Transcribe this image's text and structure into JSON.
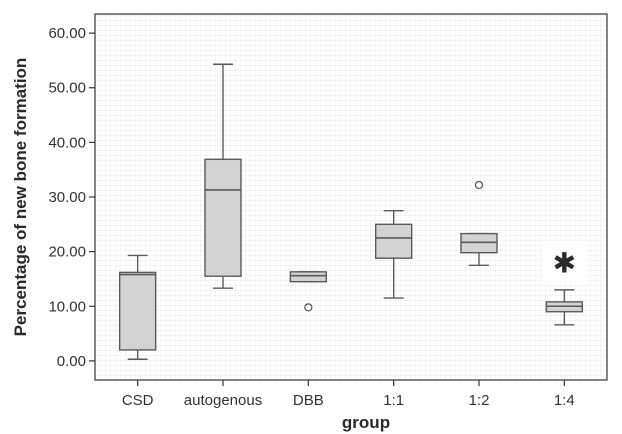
{
  "chart_data": {
    "type": "box",
    "xlabel": "group",
    "ylabel": "Percentage of new bone formation",
    "ylim": [
      -3.5,
      63.5
    ],
    "yticks": [
      0,
      10,
      20,
      30,
      40,
      50,
      60
    ],
    "ytick_labels": [
      "0.00",
      "10.00",
      "20.00",
      "30.00",
      "40.00",
      "50.00",
      "60.00"
    ],
    "grid": true,
    "categories": [
      "CSD",
      "autogenous",
      "DBB",
      "1:1",
      "1:2",
      "1:4"
    ],
    "boxes": [
      {
        "category": "CSD",
        "whisker_low": 0.3,
        "q1": 2.0,
        "median": 15.8,
        "q3": 16.2,
        "whisker_high": 19.3,
        "outliers": []
      },
      {
        "category": "autogenous",
        "whisker_low": 13.3,
        "q1": 15.5,
        "median": 31.3,
        "q3": 36.9,
        "whisker_high": 54.3,
        "outliers": []
      },
      {
        "category": "DBB",
        "whisker_low": 14.5,
        "q1": 14.5,
        "median": 15.6,
        "q3": 16.3,
        "whisker_high": 16.3,
        "outliers": [
          9.8
        ]
      },
      {
        "category": "1:1",
        "whisker_low": 11.5,
        "q1": 18.8,
        "median": 22.5,
        "q3": 25.0,
        "whisker_high": 27.5,
        "outliers": []
      },
      {
        "category": "1:2",
        "whisker_low": 17.5,
        "q1": 19.8,
        "median": 21.7,
        "q3": 23.3,
        "whisker_high": 23.3,
        "outliers": [
          32.2
        ]
      },
      {
        "category": "1:4",
        "whisker_low": 6.6,
        "q1": 9.0,
        "median": 10.0,
        "q3": 10.8,
        "whisker_high": 13.0,
        "outliers": []
      }
    ],
    "annotations": [
      {
        "category": "1:4",
        "symbol": "✱",
        "y": 18.0
      }
    ],
    "colors": {
      "box_fill": "#d3d3d3",
      "box_stroke": "#5a5a5a",
      "grid": "#e2e2e2",
      "axis": "#333333"
    }
  }
}
